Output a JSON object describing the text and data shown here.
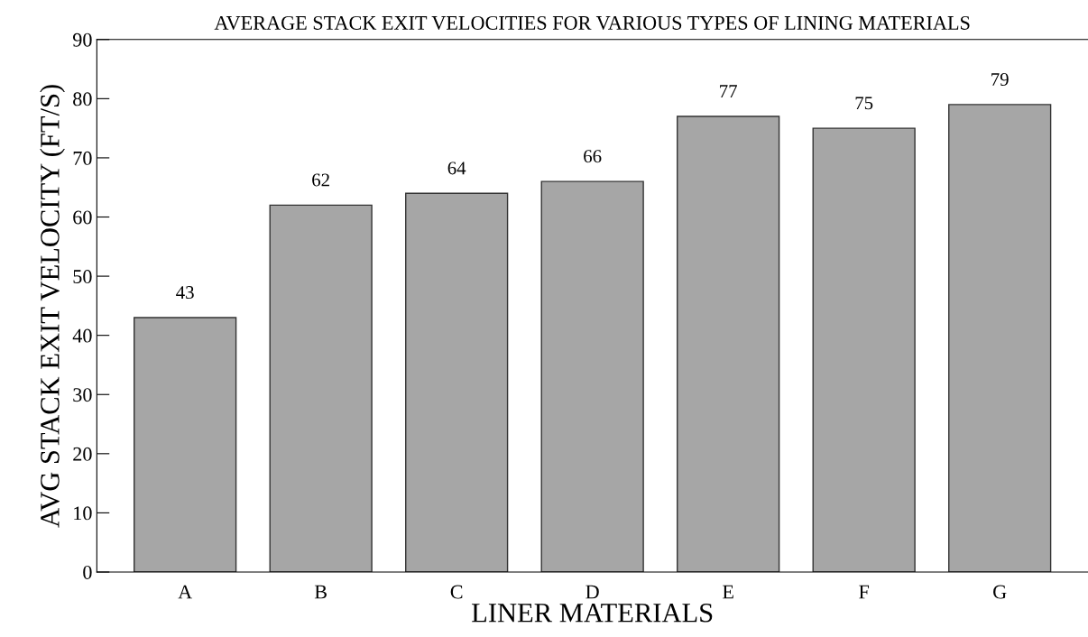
{
  "chart_data": {
    "type": "bar",
    "title": "AVERAGE STACK EXIT VELOCITIES FOR VARIOUS TYPES OF LINING MATERIALS",
    "xlabel": "LINER MATERIALS",
    "ylabel": "AVG STACK EXIT VELOCITY (FT/S)",
    "categories": [
      "A",
      "B",
      "C",
      "D",
      "E",
      "F",
      "G"
    ],
    "values": [
      43,
      62,
      64,
      66,
      77,
      75,
      79
    ],
    "color": "#a6a6a6",
    "ylim": [
      0,
      90
    ],
    "yticks": [
      0,
      10,
      20,
      30,
      40,
      50,
      60,
      70,
      80,
      90
    ],
    "data_labels": true,
    "grid": false,
    "legend": false
  }
}
